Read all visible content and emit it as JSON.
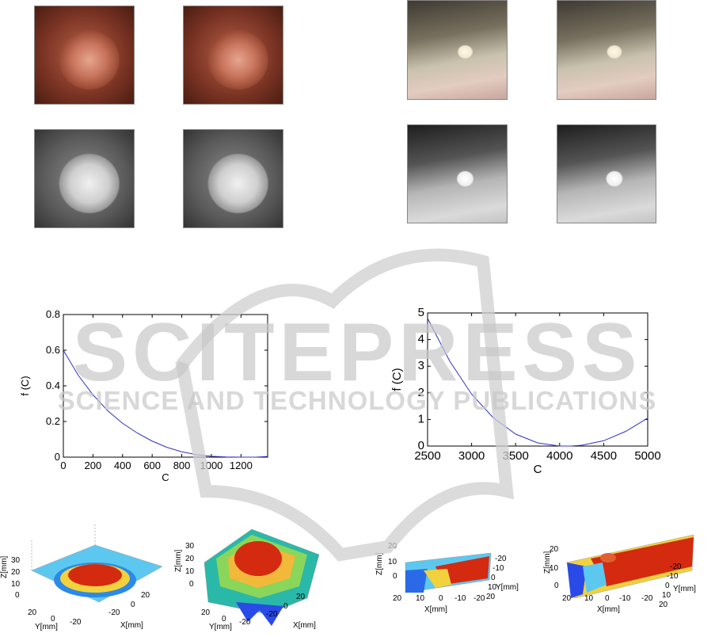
{
  "chart_data": [
    {
      "type": "line",
      "x": [
        0,
        100,
        200,
        300,
        400,
        500,
        600,
        700,
        800,
        900,
        1000,
        1100,
        1200,
        1300,
        1380
      ],
      "y": [
        0.6,
        0.46,
        0.35,
        0.26,
        0.19,
        0.135,
        0.09,
        0.055,
        0.03,
        0.014,
        0.005,
        0.001,
        0.0,
        0.0,
        0.004
      ],
      "xlabel": "C",
      "ylabel": "f (C)",
      "xlim": [
        0,
        1380
      ],
      "ylim": [
        0,
        0.8
      ],
      "xticks": [
        "0",
        "200",
        "400",
        "600",
        "800",
        "1000",
        "1200"
      ],
      "yticks": [
        "0",
        "0.2",
        "0.4",
        "0.6",
        "0.8"
      ],
      "line_color": "#3030c8"
    },
    {
      "type": "line",
      "x": [
        2500,
        2750,
        3000,
        3250,
        3500,
        3750,
        4000,
        4125,
        4250,
        4500,
        4750,
        5000
      ],
      "y": [
        4.8,
        3.2,
        1.95,
        1.05,
        0.45,
        0.12,
        0.0,
        0.0,
        0.03,
        0.2,
        0.55,
        1.05
      ],
      "xlabel": "C",
      "ylabel": "f (C)",
      "xlim": [
        2500,
        5000
      ],
      "ylim": [
        0,
        5
      ],
      "xticks": [
        "2500",
        "3000",
        "3500",
        "4000",
        "4500",
        "5000"
      ],
      "yticks": [
        "0",
        "1",
        "2",
        "3",
        "4",
        "5"
      ],
      "line_color": "#3030c8"
    }
  ],
  "plots3d": {
    "z_label": "Z[mm]",
    "y_label": "Y[mm]",
    "x_label": "X[mm]",
    "p1": {
      "z_ticks": [
        "30",
        "20",
        "10",
        "0"
      ],
      "y_ticks": [
        "20",
        "0",
        "-20"
      ],
      "x_ticks": [
        "-20",
        "0",
        "20"
      ]
    },
    "p2": {
      "z_ticks": [
        "30",
        "20",
        "10",
        "0"
      ],
      "y_ticks": [
        "20",
        "0",
        "-20"
      ],
      "x_ticks": [
        "-20",
        "0",
        "20"
      ]
    },
    "p3": {
      "z_ticks": [
        "20",
        "10",
        "0"
      ],
      "x_ticks": [
        "20",
        "10",
        "0",
        "-10",
        "-20"
      ],
      "y_ticks": [
        "-20",
        "-10",
        "0",
        "10",
        "20"
      ]
    },
    "p4": {
      "z_ticks": [
        "20",
        "10",
        "0"
      ],
      "x_ticks": [
        "20",
        "10",
        "0",
        "-10",
        "-20"
      ],
      "y_ticks": [
        "-20",
        "-10",
        "0",
        "10",
        "20"
      ]
    }
  },
  "watermark": {
    "main": "SCITEPRESS",
    "sub": "SCIENCE AND TECHNOLOGY PUBLICATIONS"
  },
  "colors": {
    "surface_high": "#d42a10",
    "surface_mid": "#f2d23c",
    "surface_low": "#2a8ae8",
    "watermark": "#c8c8c8"
  }
}
